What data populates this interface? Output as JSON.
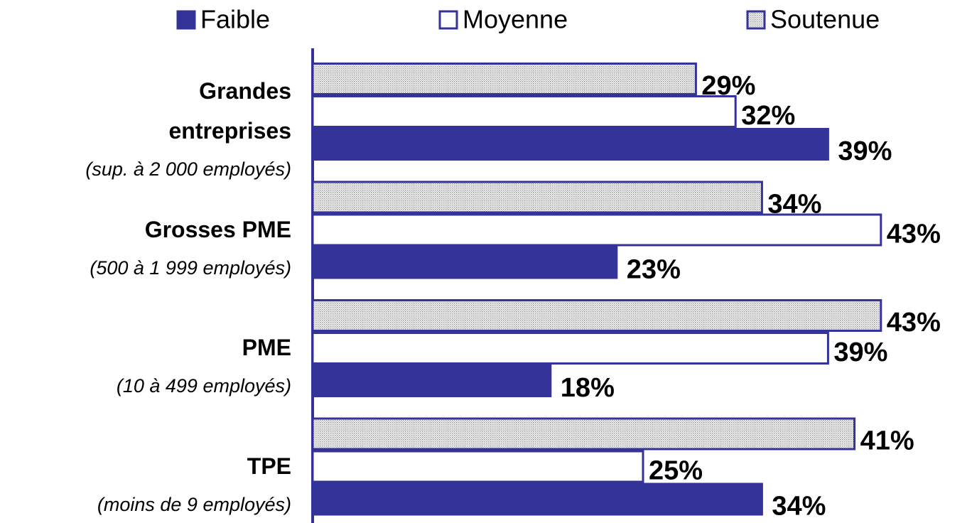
{
  "chart_data": {
    "type": "bar",
    "orientation": "horizontal",
    "categories": [
      "Grandes entreprises",
      "Grosses PME",
      "PME",
      "TPE"
    ],
    "category_notes": [
      "(sup. à 2 000 employés)",
      "(500 à 1 999 employés)",
      "(10 à 499 employés)",
      "(moins de 9 employés)"
    ],
    "series": [
      {
        "name": "Faible",
        "color": "#333399",
        "fill": "solid",
        "values": [
          39,
          23,
          18,
          34
        ],
        "value_labels": [
          "39%",
          "23%",
          "18%",
          "34%"
        ]
      },
      {
        "name": "Moyenne",
        "color": "#333399",
        "fill": "none",
        "values": [
          32,
          43,
          39,
          25
        ],
        "value_labels": [
          "32%",
          "43%",
          "39%",
          "25%"
        ]
      },
      {
        "name": "Soutenue",
        "color": "#333399",
        "fill": "dotted",
        "values": [
          29,
          34,
          43,
          41
        ],
        "value_labels": [
          "29%",
          "34%",
          "43%",
          "41%"
        ]
      }
    ],
    "legend": "top"
  }
}
